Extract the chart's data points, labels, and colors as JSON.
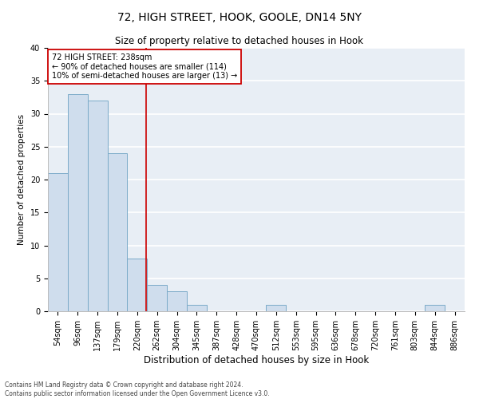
{
  "title_line1": "72, HIGH STREET, HOOK, GOOLE, DN14 5NY",
  "title_line2": "Size of property relative to detached houses in Hook",
  "xlabel": "Distribution of detached houses by size in Hook",
  "ylabel": "Number of detached properties",
  "categories": [
    "54sqm",
    "96sqm",
    "137sqm",
    "179sqm",
    "220sqm",
    "262sqm",
    "304sqm",
    "345sqm",
    "387sqm",
    "428sqm",
    "470sqm",
    "512sqm",
    "553sqm",
    "595sqm",
    "636sqm",
    "678sqm",
    "720sqm",
    "761sqm",
    "803sqm",
    "844sqm",
    "886sqm"
  ],
  "values": [
    21,
    33,
    32,
    24,
    8,
    4,
    3,
    1,
    0,
    0,
    0,
    1,
    0,
    0,
    0,
    0,
    0,
    0,
    0,
    1,
    0
  ],
  "bar_color": "#cfdded",
  "bar_edge_color": "#7aaac8",
  "ylim": [
    0,
    40
  ],
  "yticks": [
    0,
    5,
    10,
    15,
    20,
    25,
    30,
    35,
    40
  ],
  "vline_color": "#cc0000",
  "annotation_text": "72 HIGH STREET: 238sqm\n← 90% of detached houses are smaller (114)\n10% of semi-detached houses are larger (13) →",
  "annotation_box_color": "#cc0000",
  "footer_line1": "Contains HM Land Registry data © Crown copyright and database right 2024.",
  "footer_line2": "Contains public sector information licensed under the Open Government Licence v3.0.",
  "background_color": "#e8eef5",
  "title1_fontsize": 10,
  "title2_fontsize": 8.5,
  "xlabel_fontsize": 8.5,
  "ylabel_fontsize": 7.5,
  "tick_fontsize": 7,
  "annot_fontsize": 7,
  "footer_fontsize": 5.5
}
